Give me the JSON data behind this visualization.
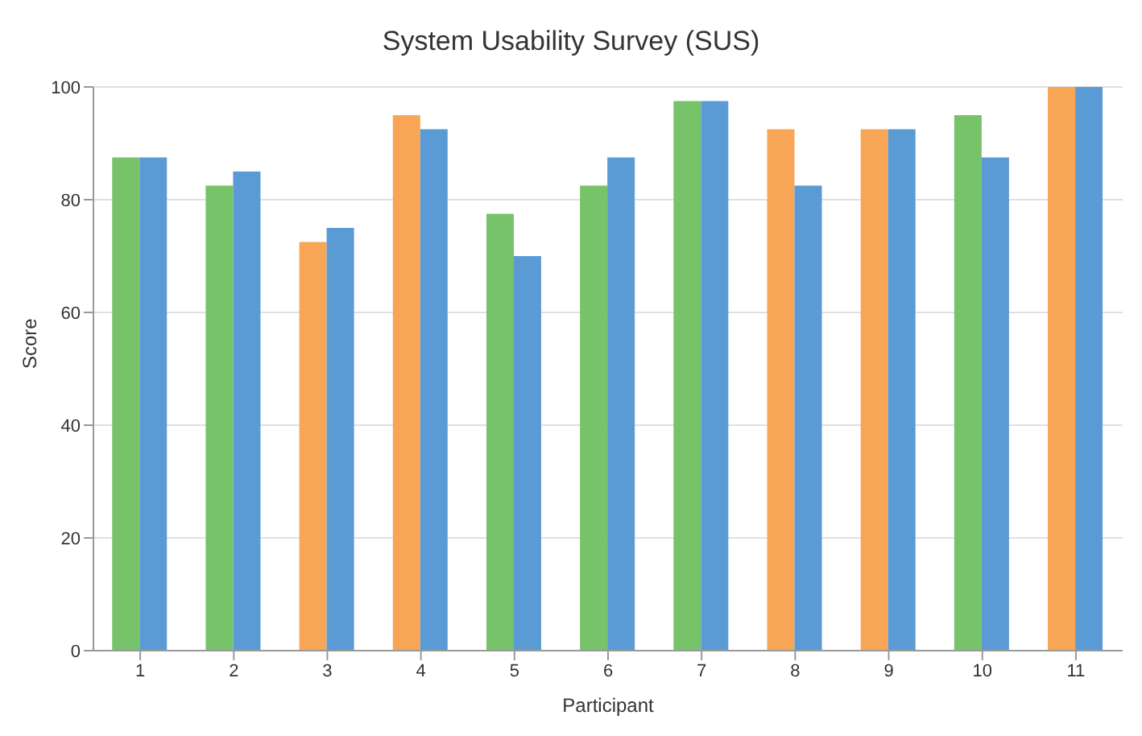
{
  "chart_data": {
    "type": "bar",
    "title": "System Usability Survey (SUS)",
    "xlabel": "Participant",
    "ylabel": "Score",
    "categories": [
      "1",
      "2",
      "3",
      "4",
      "5",
      "6",
      "7",
      "8",
      "9",
      "10",
      "11"
    ],
    "series": [
      {
        "colors": [
          "#76c36a",
          "#76c36a",
          "#f8a656",
          "#f8a656",
          "#76c36a",
          "#76c36a",
          "#76c36a",
          "#f8a656",
          "#f8a656",
          "#76c36a",
          "#f8a656"
        ],
        "values": [
          87.5,
          82.5,
          72.5,
          95,
          77.5,
          82.5,
          97.5,
          92.5,
          92.5,
          95,
          100
        ]
      },
      {
        "color": "#5b9bd5",
        "values": [
          87.5,
          85,
          75,
          92.5,
          70,
          87.5,
          97.5,
          82.5,
          92.5,
          87.5,
          100
        ]
      }
    ],
    "ylim": [
      0,
      100
    ],
    "yticks": [
      0,
      20,
      40,
      60,
      80,
      100
    ],
    "grid": "y"
  }
}
